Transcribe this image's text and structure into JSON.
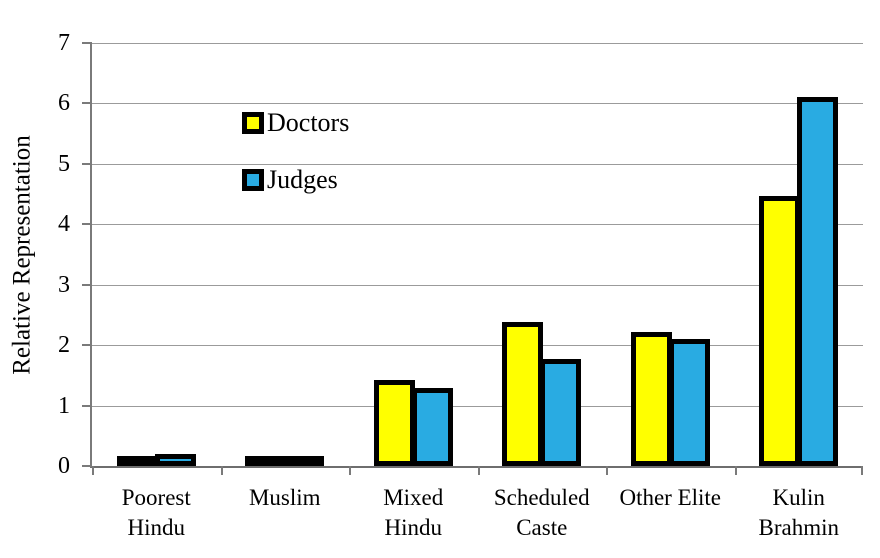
{
  "chart_data": {
    "type": "bar",
    "title": "",
    "xlabel": "",
    "ylabel": "Relative Representation",
    "ylim": [
      0,
      7
    ],
    "yticks": [
      0,
      1,
      2,
      3,
      4,
      5,
      6,
      7
    ],
    "grid": true,
    "legend_position": "top-left-inside",
    "categories": [
      "Poorest Hindu",
      "Muslim",
      "Mixed Hindu",
      "Scheduled Caste",
      "Other Elite",
      "Kulin Brahmin"
    ],
    "category_label_lines": [
      [
        "Poorest",
        "Hindu"
      ],
      [
        "Muslim"
      ],
      [
        "Mixed",
        "Hindu"
      ],
      [
        "Scheduled",
        "Caste"
      ],
      [
        "Other Elite"
      ],
      [
        "Kulin",
        "Brahmin"
      ]
    ],
    "series": [
      {
        "name": "Doctors",
        "color": "#FFFF00",
        "values": [
          0.1,
          0.12,
          1.42,
          2.38,
          2.22,
          4.47
        ]
      },
      {
        "name": "Judges",
        "color": "#29ABE2",
        "values": [
          0.2,
          0.14,
          1.29,
          1.77,
          2.1,
          6.1
        ]
      }
    ],
    "bar_border_color": "#000000",
    "gridline_color": "#9b9b9b",
    "axis_color": "#6e6e6e"
  }
}
